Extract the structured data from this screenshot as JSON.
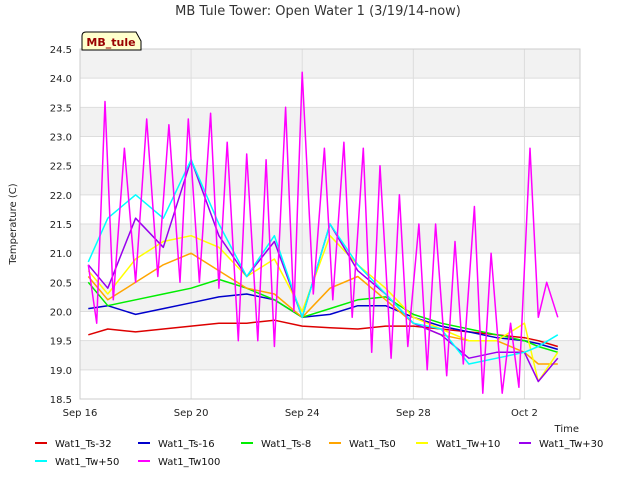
{
  "chart_data": {
    "type": "line",
    "title": "MB Tule Tower: Open Water 1 (3/19/14-now)",
    "xlabel": "Time",
    "ylabel": "Temperature (C)",
    "annotation": "MB_tule",
    "xlim": [
      0,
      18
    ],
    "ylim": [
      18.5,
      24.5
    ],
    "yticks": [
      18.5,
      19.0,
      19.5,
      20.0,
      20.5,
      21.0,
      21.5,
      22.0,
      22.5,
      23.0,
      23.5,
      24.0,
      24.5
    ],
    "xticks": [
      {
        "x": 0,
        "label": "Sep 16"
      },
      {
        "x": 4,
        "label": "Sep 20"
      },
      {
        "x": 8,
        "label": "Sep 24"
      },
      {
        "x": 12,
        "label": "Sep 28"
      },
      {
        "x": 16,
        "label": "Oct 2"
      }
    ],
    "grid": true,
    "legend_position": "bottom",
    "series": [
      {
        "name": "Wat1_Ts-32",
        "color": "#dd0000",
        "x": [
          0.3,
          1,
          2,
          3,
          4,
          5,
          6,
          7,
          8,
          9,
          10,
          11,
          12,
          13,
          14,
          15,
          16,
          16.5,
          17.2
        ],
        "values": [
          19.6,
          19.7,
          19.65,
          19.7,
          19.75,
          19.8,
          19.8,
          19.85,
          19.75,
          19.72,
          19.7,
          19.75,
          19.75,
          19.7,
          19.65,
          19.6,
          19.55,
          19.5,
          19.4
        ]
      },
      {
        "name": "Wat1_Ts-16",
        "color": "#0000cc",
        "x": [
          0.3,
          1,
          2,
          3,
          4,
          5,
          6,
          7,
          8,
          9,
          10,
          11,
          12,
          13,
          14,
          15,
          16,
          16.5,
          17.2
        ],
        "values": [
          20.05,
          20.1,
          19.95,
          20.05,
          20.15,
          20.25,
          20.3,
          20.2,
          19.9,
          19.95,
          20.1,
          20.1,
          19.9,
          19.75,
          19.65,
          19.55,
          19.5,
          19.45,
          19.35
        ]
      },
      {
        "name": "Wat1_Ts-8",
        "color": "#00ee00",
        "x": [
          0.3,
          1,
          2,
          3,
          4,
          5,
          6,
          7,
          8,
          9,
          10,
          11,
          12,
          13,
          14,
          15,
          16,
          16.5,
          17.2
        ],
        "values": [
          20.5,
          20.1,
          20.2,
          20.3,
          20.4,
          20.55,
          20.4,
          20.2,
          19.9,
          20.05,
          20.2,
          20.25,
          19.95,
          19.8,
          19.7,
          19.6,
          19.5,
          19.4,
          19.3
        ]
      },
      {
        "name": "Wat1_Ts0",
        "color": "#ffa500",
        "x": [
          0.3,
          1,
          2,
          3,
          4,
          5,
          6,
          7,
          8,
          9,
          10,
          11,
          12,
          13,
          14,
          15,
          16,
          16.5,
          17.2
        ],
        "values": [
          20.6,
          20.2,
          20.5,
          20.8,
          21.0,
          20.7,
          20.4,
          20.3,
          19.9,
          20.4,
          20.6,
          20.2,
          19.8,
          19.6,
          19.5,
          19.5,
          19.3,
          19.1,
          19.1
        ]
      },
      {
        "name": "Wat1_Tw+10",
        "color": "#ffff00",
        "x": [
          0.3,
          1,
          2,
          3,
          4,
          5,
          6,
          7,
          8,
          9,
          10,
          11,
          12,
          13,
          14,
          15,
          16,
          16.5,
          17.2
        ],
        "values": [
          20.7,
          20.3,
          20.9,
          21.2,
          21.3,
          21.1,
          20.6,
          20.9,
          20.0,
          21.3,
          20.8,
          20.4,
          19.9,
          19.7,
          19.5,
          19.5,
          19.8,
          18.8,
          19.3
        ]
      },
      {
        "name": "Wat1_Tw+30",
        "color": "#9900ee",
        "x": [
          0.3,
          1,
          2,
          3,
          4,
          5,
          6,
          7,
          8,
          9,
          10,
          11,
          12,
          13,
          14,
          15,
          16,
          16.5,
          17.2
        ],
        "values": [
          20.8,
          20.4,
          21.6,
          21.1,
          22.6,
          21.3,
          20.6,
          21.2,
          19.9,
          21.5,
          20.7,
          20.3,
          19.8,
          19.6,
          19.2,
          19.3,
          19.3,
          18.8,
          19.2
        ]
      },
      {
        "name": "Wat1_Tw+50",
        "color": "#00ffff",
        "x": [
          0.3,
          1,
          2,
          3,
          4,
          5,
          6,
          7,
          8,
          9,
          10,
          11,
          12,
          13,
          14,
          15,
          16,
          16.5,
          17.2
        ],
        "values": [
          20.85,
          21.6,
          22.0,
          21.6,
          22.6,
          21.5,
          20.6,
          21.3,
          19.9,
          21.5,
          20.8,
          20.3,
          19.8,
          19.7,
          19.1,
          19.2,
          19.3,
          19.4,
          19.6
        ]
      },
      {
        "name": "Wat1_Tw100",
        "color": "#ff00ff",
        "x": [
          0.3,
          0.6,
          0.9,
          1.2,
          1.6,
          2.0,
          2.4,
          2.8,
          3.2,
          3.6,
          3.9,
          4.3,
          4.7,
          5.0,
          5.3,
          5.7,
          6.0,
          6.4,
          6.7,
          7.0,
          7.4,
          7.7,
          8.0,
          8.4,
          8.8,
          9.1,
          9.5,
          9.8,
          10.2,
          10.5,
          10.8,
          11.2,
          11.5,
          11.8,
          12.2,
          12.5,
          12.8,
          13.2,
          13.5,
          13.8,
          14.2,
          14.5,
          14.8,
          15.2,
          15.5,
          15.8,
          16.2,
          16.5,
          16.8,
          17.2
        ],
        "values": [
          20.8,
          19.8,
          23.6,
          20.2,
          22.8,
          20.5,
          23.3,
          20.6,
          23.2,
          20.5,
          23.3,
          20.5,
          23.4,
          20.4,
          22.9,
          19.5,
          22.7,
          19.5,
          22.6,
          19.4,
          23.5,
          20.0,
          24.1,
          20.3,
          22.8,
          20.2,
          22.9,
          19.9,
          22.8,
          19.3,
          22.5,
          19.2,
          22.0,
          19.4,
          21.5,
          19.0,
          21.5,
          18.9,
          21.2,
          19.1,
          21.8,
          18.6,
          21.0,
          18.6,
          19.8,
          18.7,
          22.8,
          19.9,
          20.5,
          19.9
        ]
      }
    ]
  }
}
